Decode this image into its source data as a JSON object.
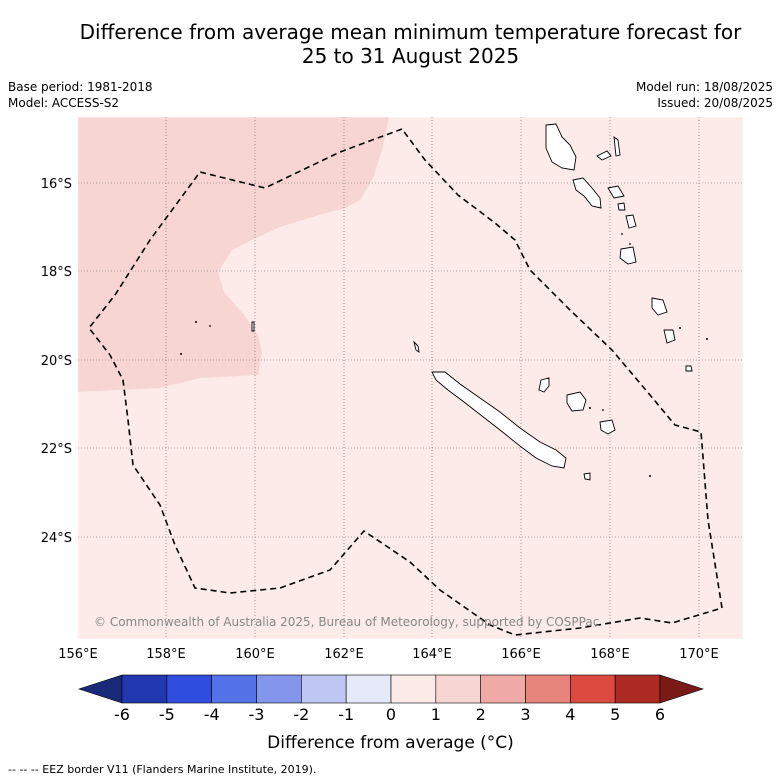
{
  "title_line1": "Difference from average mean minimum temperature forecast for",
  "title_line2": "25 to 31 August 2025",
  "base_period": "Base period: 1981-2018",
  "model": "Model: ACCESS-S2",
  "model_run": "Model run: 18/08/2025",
  "issued": "Issued: 20/08/2025",
  "copyright": "© Commonwealth of Australia 2025, Bureau of Meteorology, supported by COSPPac",
  "lon_labels": [
    "156°E",
    "158°E",
    "160°E",
    "162°E",
    "164°E",
    "166°E",
    "168°E",
    "170°E"
  ],
  "lat_labels": [
    "16°S",
    "18°S",
    "20°S",
    "22°S",
    "24°S"
  ],
  "colorbar": {
    "ticks": [
      "-6",
      "-5",
      "-4",
      "-3",
      "-2",
      "-1",
      "0",
      "1",
      "2",
      "3",
      "4",
      "5",
      "6"
    ],
    "colors": [
      "#1a2a7a",
      "#2238b0",
      "#2f4ee0",
      "#5573e8",
      "#8496ec",
      "#bec6f4",
      "#e6e9fa",
      "#fcebe8",
      "#f7d5d2",
      "#efaaa5",
      "#e7847c",
      "#dc4a40",
      "#ac2a22",
      "#7a1a16"
    ],
    "label": "Difference from average (°C)"
  },
  "legend_footnote": "--  --  -- EEZ border V11 (Flanders Marine Institute, 2019)."
}
